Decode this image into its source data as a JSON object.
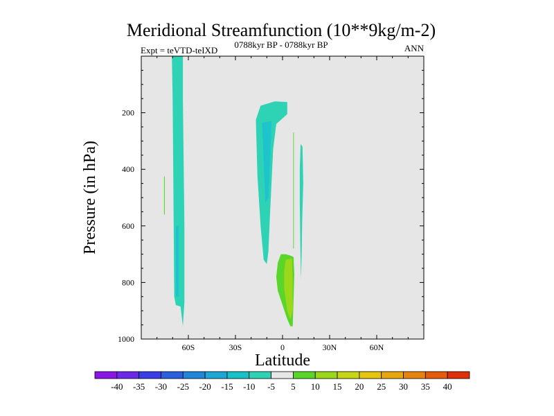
{
  "chart_data": {
    "type": "contour",
    "title": "Meridional Streamfunction (10**9kg/m-2)",
    "left_subtitle": "Expt = teVTD-teIXD",
    "center_subtitle": "0788kyr BP - 0788kyr BP",
    "right_subtitle": "ANN",
    "xlabel": "Latitude",
    "ylabel": "Pressure (in hPa)",
    "xlim": [
      -90,
      90
    ],
    "ylim": [
      1000,
      0
    ],
    "x_ticks": [
      {
        "value": -60,
        "label": "60S"
      },
      {
        "value": -30,
        "label": "30S"
      },
      {
        "value": 0,
        "label": "0"
      },
      {
        "value": 30,
        "label": "30N"
      },
      {
        "value": 60,
        "label": "60N"
      }
    ],
    "y_ticks": [
      {
        "value": 200,
        "label": "200"
      },
      {
        "value": 400,
        "label": "400"
      },
      {
        "value": 600,
        "label": "600"
      },
      {
        "value": 800,
        "label": "800"
      },
      {
        "value": 1000,
        "label": "1000"
      }
    ],
    "y_minor_step": 50,
    "x_minor_step": 10,
    "background_color": "#e6e6e6",
    "colorbar": {
      "labels": [
        "-40",
        "-35",
        "-30",
        "-25",
        "-20",
        "-15",
        "-10",
        "-5",
        "5",
        "10",
        "15",
        "20",
        "25",
        "30",
        "35",
        "40"
      ],
      "colors": [
        "#8a17e6",
        "#6d28e8",
        "#3a3de6",
        "#2a5fdd",
        "#1f86d9",
        "#1ea7d4",
        "#16c1c8",
        "#2ed3b6",
        "#e6e6e6",
        "#5ad62a",
        "#9bd81a",
        "#c7d616",
        "#e6c50e",
        "#e8a70d",
        "#e8820e",
        "#e45c0c",
        "#e0300a"
      ]
    },
    "regions": [
      {
        "name": "band-60S",
        "value_range": [
          -10,
          -5
        ],
        "color": "#2ed3b6",
        "outline": [
          [
            -70.5,
            0
          ],
          [
            -63.5,
            0
          ],
          [
            -63.5,
            150
          ],
          [
            -62.5,
            600
          ],
          [
            -62.5,
            870
          ],
          [
            -63.5,
            955
          ],
          [
            -65,
            885
          ],
          [
            -68,
            880
          ],
          [
            -69,
            850
          ],
          [
            -69.5,
            500
          ],
          [
            -70,
            150
          ]
        ]
      },
      {
        "name": "band-60S-core",
        "value_range": [
          -15,
          -10
        ],
        "color": "#1ec4cc",
        "outline": [
          [
            -68,
            600
          ],
          [
            -66,
            600
          ],
          [
            -66,
            850
          ],
          [
            -68,
            850
          ]
        ]
      },
      {
        "name": "sliver-75S",
        "value_range": [
          5,
          10
        ],
        "color": "#5ad62a",
        "outline": [
          [
            -75.5,
            425
          ],
          [
            -75,
            425
          ],
          [
            -75,
            560
          ],
          [
            -75.5,
            560
          ]
        ]
      },
      {
        "name": "upper-tropics-cell",
        "value_range": [
          -10,
          -5
        ],
        "color": "#2ed3b6",
        "outline": [
          [
            -14,
            175
          ],
          [
            -5,
            160
          ],
          [
            3,
            162
          ],
          [
            3,
            205
          ],
          [
            -4,
            240
          ],
          [
            -6,
            330
          ],
          [
            -8,
            560
          ],
          [
            -9,
            690
          ],
          [
            -10,
            735
          ],
          [
            -12,
            720
          ],
          [
            -14,
            600
          ],
          [
            -16,
            420
          ],
          [
            -17,
            225
          ]
        ]
      },
      {
        "name": "upper-tropics-core",
        "value_range": [
          -15,
          -10
        ],
        "color": "#1ec4cc",
        "outline": [
          [
            -13,
            235
          ],
          [
            -7,
            230
          ],
          [
            -8,
            380
          ],
          [
            -9,
            500
          ],
          [
            -11,
            520
          ],
          [
            -12,
            380
          ]
        ]
      },
      {
        "name": "narrow-cell-12N",
        "value_range": [
          -10,
          -5
        ],
        "color": "#2ed3b6",
        "outline": [
          [
            11.5,
            310
          ],
          [
            12.7,
            320
          ],
          [
            13.2,
            450
          ],
          [
            12.5,
            590
          ],
          [
            12.2,
            690
          ],
          [
            11.8,
            790
          ],
          [
            11.4,
            690
          ],
          [
            11,
            520
          ],
          [
            11,
            400
          ]
        ]
      },
      {
        "name": "sliver-7N",
        "value_range": [
          5,
          10
        ],
        "color": "#5ad62a",
        "outline": [
          [
            6.8,
            270
          ],
          [
            7.2,
            270
          ],
          [
            7.2,
            680
          ],
          [
            6.8,
            680
          ]
        ]
      },
      {
        "name": "lower-tropics-cell",
        "value_range": [
          5,
          10
        ],
        "color": "#5ad62a",
        "outline": [
          [
            -1,
            700
          ],
          [
            2,
            700
          ],
          [
            5,
            705
          ],
          [
            7,
            710
          ],
          [
            7.5,
            770
          ],
          [
            7,
            860
          ],
          [
            6.5,
            955
          ],
          [
            5,
            955
          ],
          [
            3,
            930
          ],
          [
            0,
            880
          ],
          [
            -3,
            830
          ],
          [
            -4,
            780
          ],
          [
            -3,
            730
          ]
        ]
      },
      {
        "name": "lower-tropics-core",
        "value_range": [
          10,
          15
        ],
        "color": "#9bd81a",
        "outline": [
          [
            2,
            720
          ],
          [
            6,
            715
          ],
          [
            6.5,
            800
          ],
          [
            6.5,
            900
          ],
          [
            5,
            930
          ],
          [
            3,
            900
          ],
          [
            1,
            820
          ],
          [
            1,
            760
          ]
        ]
      }
    ]
  }
}
